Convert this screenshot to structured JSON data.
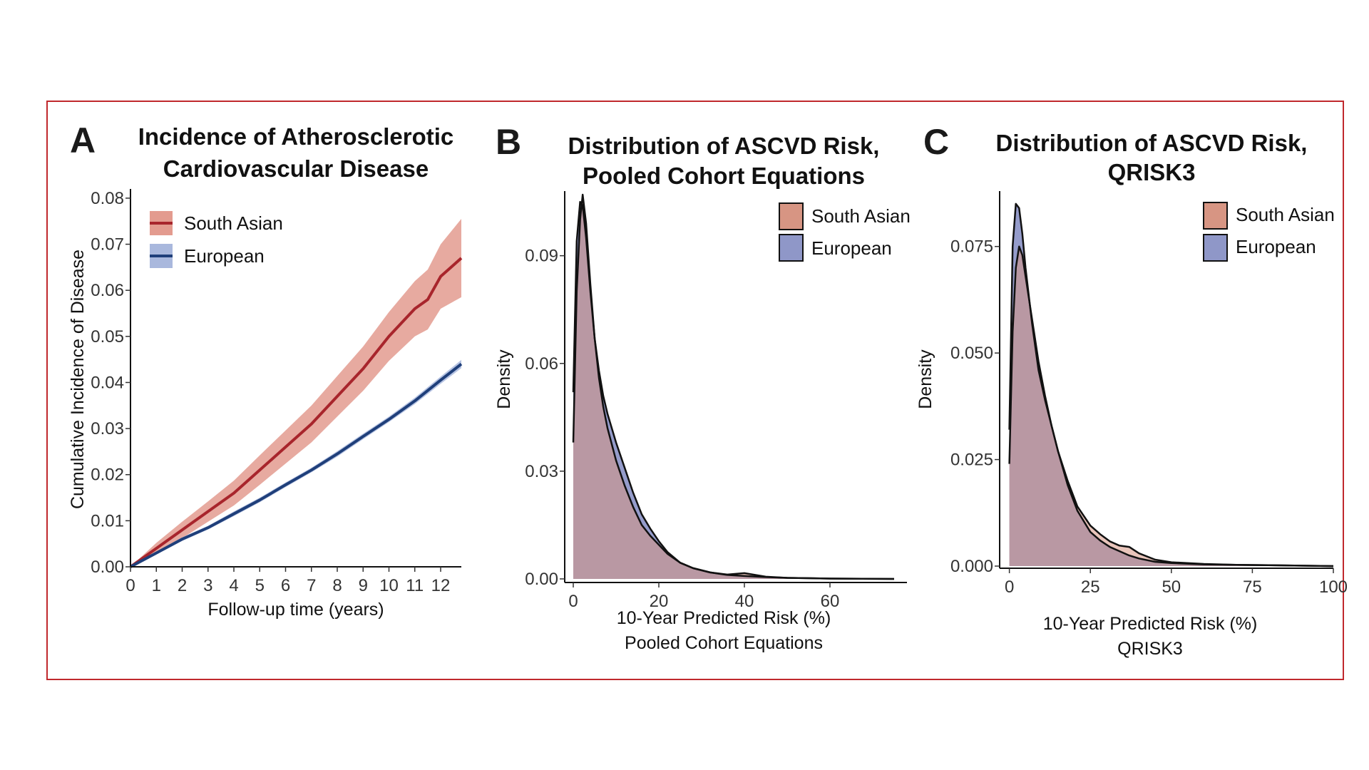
{
  "colors": {
    "frame": "#c0282d",
    "south_asian_line": "#a8252c",
    "south_asian_band": "#e39b8f",
    "european_line": "#1f3f7a",
    "european_band": "#a9b8dd",
    "south_asian_fill": "#d79583",
    "european_fill": "#8f97c8",
    "overlap_fill": "#8d5b78"
  },
  "chart_data": [
    {
      "panel": "A",
      "type": "line",
      "title": [
        "Incidence of Atherosclerotic",
        "Cardiovascular Disease"
      ],
      "xlabel": "Follow-up time (years)",
      "ylabel": "Cumulative Incidence of Disease",
      "xlim": [
        0,
        12.8
      ],
      "ylim": [
        0,
        0.082
      ],
      "xticks": [
        0,
        1,
        2,
        3,
        4,
        5,
        6,
        7,
        8,
        9,
        10,
        11,
        12
      ],
      "xtick_labels": [
        "0",
        "1",
        "2",
        "3",
        "4",
        "5",
        "6",
        "7",
        "8",
        "9",
        "10",
        "11",
        "12"
      ],
      "yticks": [
        0,
        0.01,
        0.02,
        0.03,
        0.04,
        0.05,
        0.06,
        0.07,
        0.08
      ],
      "ytick_labels": [
        "0.00",
        "0.01",
        "0.02",
        "0.03",
        "0.04",
        "0.05",
        "0.06",
        "0.07",
        "0.08"
      ],
      "legend": [
        "South Asian",
        "European"
      ],
      "series": [
        {
          "name": "South Asian",
          "x": [
            0,
            1,
            2,
            3,
            4,
            5,
            6,
            7,
            8,
            9,
            10,
            11,
            11.5,
            12,
            12.8
          ],
          "y": [
            0,
            0.004,
            0.008,
            0.012,
            0.016,
            0.021,
            0.026,
            0.031,
            0.037,
            0.043,
            0.05,
            0.056,
            0.058,
            0.063,
            0.067
          ],
          "ci_width": [
            0,
            0.0012,
            0.0018,
            0.0022,
            0.0027,
            0.0032,
            0.0036,
            0.004,
            0.0044,
            0.0048,
            0.0053,
            0.006,
            0.0065,
            0.007,
            0.0085
          ]
        },
        {
          "name": "European",
          "x": [
            0,
            1,
            2,
            3,
            4,
            5,
            6,
            7,
            8,
            9,
            10,
            11,
            12,
            12.8
          ],
          "y": [
            0,
            0.003,
            0.006,
            0.0085,
            0.0115,
            0.0145,
            0.0178,
            0.021,
            0.0245,
            0.0283,
            0.032,
            0.036,
            0.0405,
            0.044
          ],
          "ci_width": [
            0,
            0.0003,
            0.0004,
            0.0004,
            0.0005,
            0.0005,
            0.0005,
            0.0005,
            0.0006,
            0.0006,
            0.0006,
            0.0007,
            0.0008,
            0.0009
          ]
        }
      ]
    },
    {
      "panel": "B",
      "type": "area",
      "title": [
        "Distribution of ASCVD Risk,",
        "Pooled Cohort Equations"
      ],
      "xlabel": [
        "10-Year Predicted Risk (%)",
        "Pooled Cohort Equations"
      ],
      "ylabel": "Density",
      "xlim": [
        -2,
        78
      ],
      "ylim": [
        -0.001,
        0.108
      ],
      "xticks": [
        0,
        20,
        40,
        60
      ],
      "xtick_labels": [
        "0",
        "20",
        "40",
        "60"
      ],
      "yticks": [
        0,
        0.03,
        0.06,
        0.09
      ],
      "ytick_labels": [
        "0.00",
        "0.03",
        "0.06",
        "0.09"
      ],
      "legend": [
        "South Asian",
        "European"
      ],
      "series": [
        {
          "name": "South Asian",
          "x": [
            0,
            0.8,
            1.6,
            2.2,
            3,
            4,
            5,
            6,
            7,
            8,
            10,
            12,
            14,
            16,
            18,
            20,
            22,
            25,
            28,
            32,
            36,
            40,
            42,
            45,
            50,
            60,
            75
          ],
          "y": [
            0.038,
            0.08,
            0.1,
            0.107,
            0.099,
            0.082,
            0.067,
            0.056,
            0.048,
            0.042,
            0.033,
            0.026,
            0.02,
            0.015,
            0.012,
            0.0095,
            0.007,
            0.0045,
            0.003,
            0.0018,
            0.0012,
            0.0016,
            0.0012,
            0.0006,
            0.0003,
            0.0001,
            0.0
          ]
        },
        {
          "name": "European",
          "x": [
            0,
            0.8,
            1.6,
            2.2,
            3,
            4,
            5,
            6,
            7,
            8,
            10,
            12,
            14,
            16,
            18,
            20,
            22,
            25,
            28,
            32,
            36,
            40,
            45,
            50,
            60,
            75
          ],
          "y": [
            0.052,
            0.094,
            0.105,
            0.104,
            0.095,
            0.08,
            0.067,
            0.058,
            0.051,
            0.046,
            0.038,
            0.031,
            0.024,
            0.018,
            0.014,
            0.0105,
            0.0075,
            0.0045,
            0.003,
            0.0018,
            0.0011,
            0.0008,
            0.0005,
            0.0003,
            0.0001,
            0.0
          ]
        }
      ]
    },
    {
      "panel": "C",
      "type": "area",
      "title": [
        "Distribution of ASCVD Risk,",
        "QRISK3"
      ],
      "xlabel": [
        "10-Year Predicted Risk (%)",
        "QRISK3"
      ],
      "ylabel": "Density",
      "xlim": [
        -3,
        100
      ],
      "ylim": [
        -0.0005,
        0.088
      ],
      "xticks": [
        0,
        25,
        50,
        75,
        100
      ],
      "xtick_labels": [
        "0",
        "25",
        "50",
        "75",
        "100"
      ],
      "yticks": [
        0,
        0.025,
        0.05,
        0.075
      ],
      "ytick_labels": [
        "0.000",
        "0.025",
        "0.050",
        "0.075"
      ],
      "legend": [
        "South Asian",
        "European"
      ],
      "series": [
        {
          "name": "South Asian",
          "x": [
            0,
            1,
            2,
            3,
            4,
            5,
            7,
            9,
            11,
            13,
            15,
            18,
            21,
            25,
            28,
            31,
            34,
            37,
            40,
            45,
            50,
            60,
            70,
            80,
            100
          ],
          "y": [
            0.024,
            0.055,
            0.07,
            0.075,
            0.073,
            0.068,
            0.058,
            0.048,
            0.04,
            0.033,
            0.027,
            0.02,
            0.014,
            0.0095,
            0.0075,
            0.0058,
            0.0048,
            0.0045,
            0.003,
            0.0015,
            0.0009,
            0.0005,
            0.0003,
            0.0002,
            0.0
          ]
        },
        {
          "name": "European",
          "x": [
            0,
            1,
            2,
            3,
            4,
            5,
            7,
            9,
            11,
            13,
            15,
            18,
            21,
            25,
            28,
            31,
            34,
            37,
            40,
            45,
            50,
            60,
            70,
            80,
            100
          ],
          "y": [
            0.032,
            0.075,
            0.085,
            0.084,
            0.078,
            0.07,
            0.057,
            0.046,
            0.039,
            0.033,
            0.027,
            0.019,
            0.013,
            0.008,
            0.006,
            0.0045,
            0.0035,
            0.0025,
            0.0018,
            0.001,
            0.0007,
            0.0004,
            0.0003,
            0.0002,
            0.0
          ]
        }
      ]
    }
  ]
}
